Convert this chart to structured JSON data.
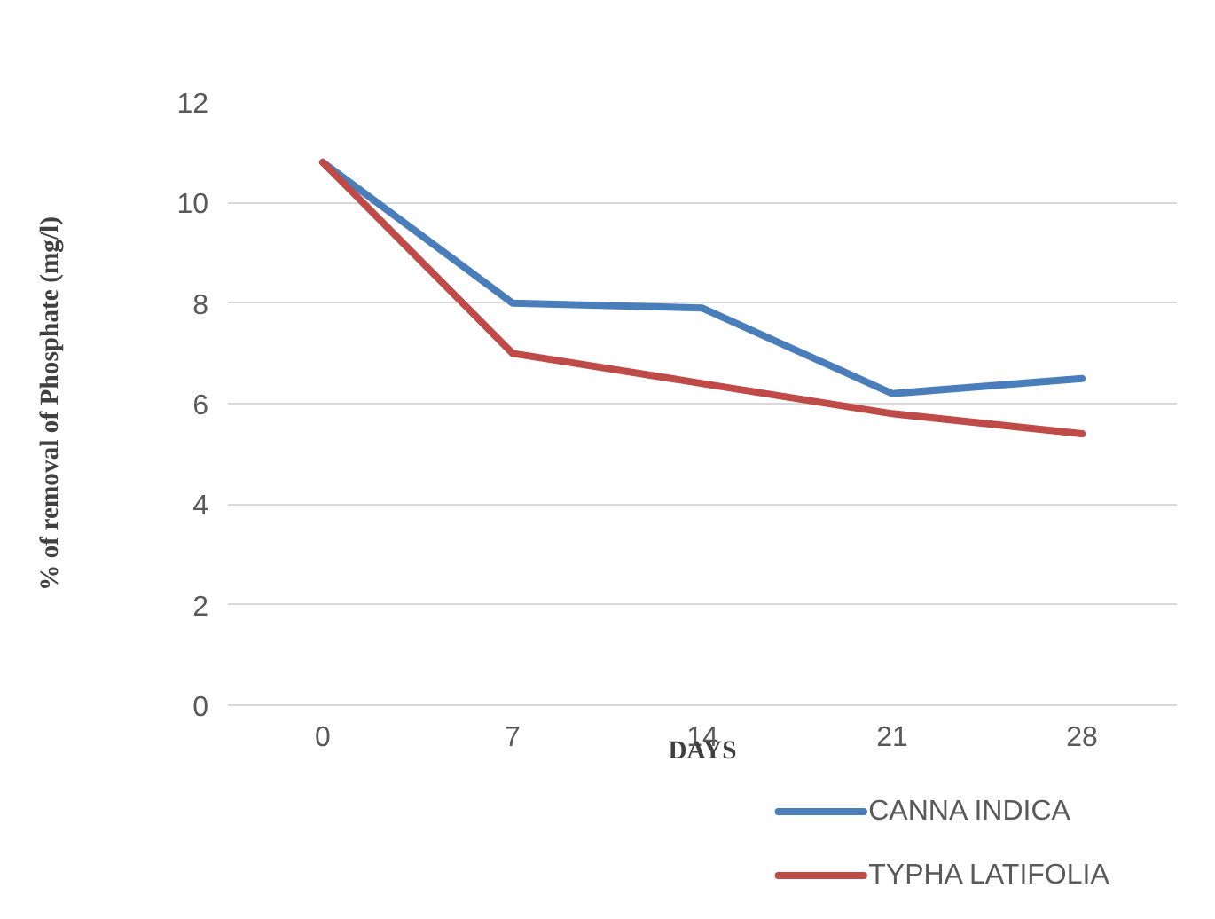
{
  "chart_data": {
    "type": "line",
    "xlabel": "DAYS",
    "ylabel": "% of removal of Phosphate (mg/l)",
    "categories": [
      "0",
      "7",
      "14",
      "21",
      "28"
    ],
    "series": [
      {
        "name": "CANNA INDICA",
        "color": "#4a7ebb",
        "values": [
          10.8,
          8.0,
          7.9,
          6.2,
          6.5
        ]
      },
      {
        "name": "TYPHA LATIFOLIA",
        "color": "#be4b48",
        "values": [
          10.8,
          7.0,
          6.4,
          5.8,
          5.4
        ]
      }
    ],
    "ylim": [
      0,
      12
    ],
    "yticks": [
      0,
      2,
      4,
      6,
      8,
      10,
      12
    ],
    "grid": "y",
    "legend": "bottom right",
    "marker": "none",
    "line_style": "solid"
  }
}
